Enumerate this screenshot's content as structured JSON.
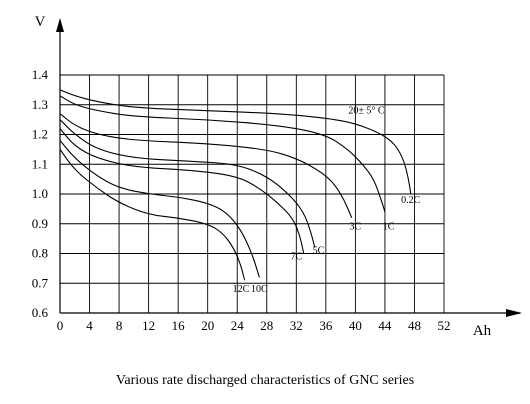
{
  "caption": "Various rate discharged characteristics of GNC series",
  "chart_data": {
    "type": "line",
    "title": "",
    "ylabel": "V",
    "xlabel": "Ah",
    "xlim": [
      0,
      52
    ],
    "ylim": [
      0.6,
      1.4
    ],
    "x_ticks": [
      "0",
      "4",
      "8",
      "12",
      "16",
      "20",
      "24",
      "28",
      "32",
      "36",
      "40",
      "44",
      "48",
      "52"
    ],
    "y_ticks": [
      "0.6",
      "0.7",
      "0.8",
      "0.9",
      "1.0",
      "1.1",
      "1.2",
      "1.3",
      "1.4"
    ],
    "grid": true,
    "annotations": [
      {
        "text": "20± 5° C",
        "x": 41.5,
        "y": 1.27
      }
    ],
    "series": [
      {
        "name": "0.2C",
        "label_x": 47.5,
        "label_y": 0.97,
        "points": [
          [
            0,
            1.35
          ],
          [
            2,
            1.33
          ],
          [
            5,
            1.31
          ],
          [
            10,
            1.29
          ],
          [
            20,
            1.28
          ],
          [
            30,
            1.27
          ],
          [
            38,
            1.25
          ],
          [
            42,
            1.22
          ],
          [
            45,
            1.18
          ],
          [
            46.5,
            1.12
          ],
          [
            47.2,
            1.05
          ],
          [
            47.5,
            1.0
          ]
        ]
      },
      {
        "name": "1C",
        "label_x": 44.5,
        "label_y": 0.88,
        "points": [
          [
            0,
            1.33
          ],
          [
            2,
            1.3
          ],
          [
            5,
            1.28
          ],
          [
            10,
            1.26
          ],
          [
            20,
            1.25
          ],
          [
            30,
            1.23
          ],
          [
            36,
            1.2
          ],
          [
            39,
            1.15
          ],
          [
            41,
            1.1
          ],
          [
            42.5,
            1.05
          ],
          [
            43.5,
            0.98
          ],
          [
            44,
            0.94
          ]
        ]
      },
      {
        "name": "3C",
        "label_x": 40,
        "label_y": 0.88,
        "points": [
          [
            0,
            1.27
          ],
          [
            2,
            1.23
          ],
          [
            5,
            1.2
          ],
          [
            10,
            1.18
          ],
          [
            20,
            1.17
          ],
          [
            28,
            1.15
          ],
          [
            32,
            1.12
          ],
          [
            35,
            1.08
          ],
          [
            37,
            1.04
          ],
          [
            38.5,
            0.98
          ],
          [
            39.5,
            0.92
          ]
        ]
      },
      {
        "name": "5C",
        "label_x": 35,
        "label_y": 0.8,
        "points": [
          [
            0,
            1.25
          ],
          [
            2,
            1.2
          ],
          [
            5,
            1.15
          ],
          [
            10,
            1.12
          ],
          [
            18,
            1.11
          ],
          [
            24,
            1.1
          ],
          [
            28,
            1.06
          ],
          [
            31,
            1.0
          ],
          [
            33,
            0.94
          ],
          [
            34,
            0.87
          ],
          [
            34.5,
            0.82
          ]
        ]
      },
      {
        "name": "7C",
        "label_x": 32,
        "label_y": 0.78,
        "points": [
          [
            0,
            1.22
          ],
          [
            2,
            1.16
          ],
          [
            5,
            1.12
          ],
          [
            10,
            1.09
          ],
          [
            18,
            1.08
          ],
          [
            24,
            1.06
          ],
          [
            27,
            1.02
          ],
          [
            29.5,
            0.97
          ],
          [
            31.5,
            0.92
          ],
          [
            32.5,
            0.86
          ],
          [
            33,
            0.8
          ]
        ]
      },
      {
        "name": "10C",
        "label_x": 27,
        "label_y": 0.67,
        "points": [
          [
            0,
            1.18
          ],
          [
            2,
            1.12
          ],
          [
            5,
            1.06
          ],
          [
            8,
            1.02
          ],
          [
            12,
            1.0
          ],
          [
            16,
            0.99
          ],
          [
            20,
            0.97
          ],
          [
            22.5,
            0.94
          ],
          [
            24.5,
            0.88
          ],
          [
            26,
            0.8
          ],
          [
            27,
            0.72
          ]
        ]
      },
      {
        "name": "12C",
        "label_x": 24.5,
        "label_y": 0.67,
        "points": [
          [
            0,
            1.15
          ],
          [
            2,
            1.08
          ],
          [
            5,
            1.02
          ],
          [
            8,
            0.97
          ],
          [
            12,
            0.93
          ],
          [
            16,
            0.92
          ],
          [
            20,
            0.9
          ],
          [
            22,
            0.87
          ],
          [
            23.5,
            0.82
          ],
          [
            24.5,
            0.76
          ],
          [
            25,
            0.71
          ]
        ]
      }
    ]
  }
}
